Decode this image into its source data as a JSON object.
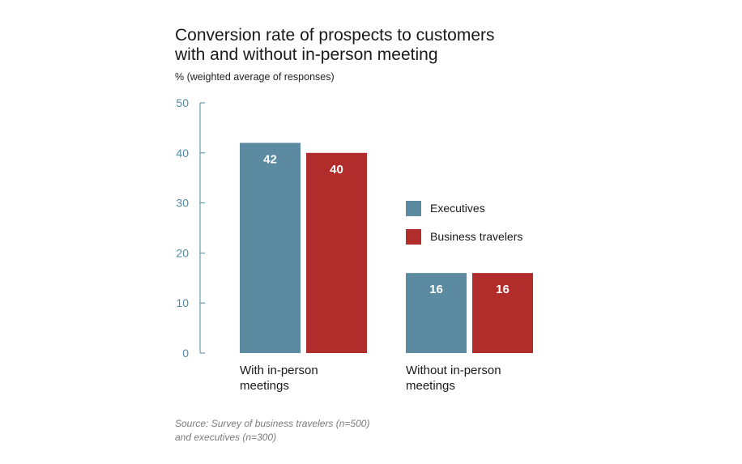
{
  "chart_data": {
    "type": "bar",
    "title_lines": [
      "Conversion rate of prospects to customers",
      "with and without in-person meeting"
    ],
    "subtitle": "% (weighted average of responses)",
    "categories": [
      {
        "lines": [
          "With in-person",
          "meetings"
        ]
      },
      {
        "lines": [
          "Without in-person",
          "meetings"
        ]
      }
    ],
    "series": [
      {
        "name": "Executives",
        "color": "#5b8aa1",
        "values": [
          42,
          16
        ]
      },
      {
        "name": "Business travelers",
        "color": "#b12d2b",
        "values": [
          40,
          16
        ]
      }
    ],
    "y_ticks": [
      "0",
      "10",
      "20",
      "30",
      "40",
      "50"
    ],
    "ylim": [
      0,
      50
    ],
    "grid": false,
    "legend_position": "right",
    "axis_color": "#4f8aa3",
    "source_lines": [
      "Source: Survey of business travelers (n=500)",
      "and executives (n=300)"
    ]
  }
}
